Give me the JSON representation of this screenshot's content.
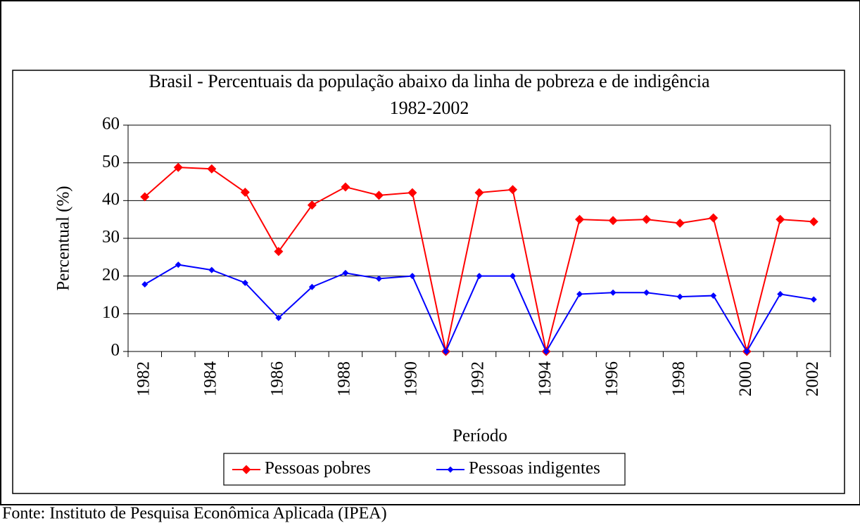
{
  "chart_data": {
    "type": "line",
    "title": "Brasil - Percentuais da população abaixo da linha de pobreza e de indigência",
    "subtitle": "1982-2002",
    "x_label": "Período",
    "y_label": "Percentual (%)",
    "categories": [
      "1982",
      null,
      "1984",
      null,
      "1986",
      null,
      "1988",
      null,
      "1990",
      null,
      "1992",
      null,
      "1994",
      null,
      "1996",
      null,
      "1998",
      null,
      "2000",
      null,
      "2002"
    ],
    "series": [
      {
        "name": "Pessoas pobres",
        "color": "#ff0000",
        "values": [
          41.0,
          48.8,
          48.4,
          42.2,
          26.5,
          38.8,
          43.6,
          41.4,
          42.1,
          0,
          42.1,
          42.9,
          0,
          35.0,
          34.7,
          35.0,
          34.0,
          35.4,
          0,
          35.0,
          34.4
        ]
      },
      {
        "name": "Pessoas indigentes",
        "color": "#0000ff",
        "values": [
          17.8,
          23.0,
          21.6,
          18.2,
          8.9,
          17.1,
          20.8,
          19.3,
          20.0,
          0,
          20.0,
          20.0,
          0,
          15.2,
          15.6,
          15.6,
          14.5,
          14.8,
          0,
          15.2,
          13.8
        ]
      }
    ],
    "ylim": [
      0,
      60
    ],
    "yticks": [
      0,
      10,
      20,
      30,
      40,
      50,
      60
    ],
    "grid": true,
    "legend": "bottom",
    "source": "Fonte: Instituto de Pesquisa Econômica Aplicada (IPEA)"
  }
}
